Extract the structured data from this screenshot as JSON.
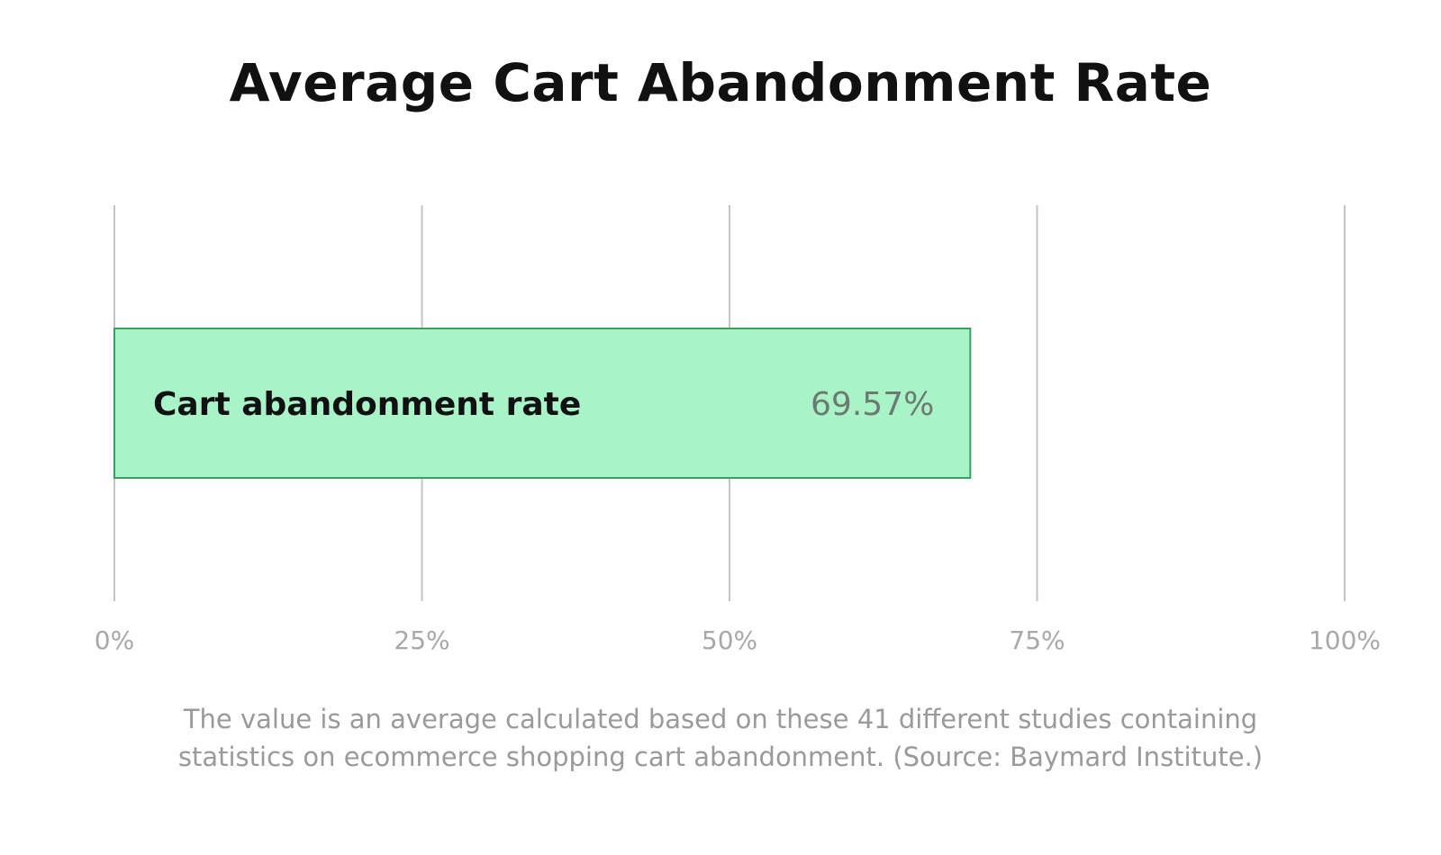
{
  "chart_data": {
    "type": "bar",
    "orientation": "horizontal",
    "title": "Average Cart Abandonment Rate",
    "categories": [
      "Cart abandonment rate"
    ],
    "values": [
      69.57
    ],
    "value_labels": [
      "69.57%"
    ],
    "xlim": [
      0,
      100
    ],
    "x_ticks": [
      0,
      25,
      50,
      75,
      100
    ],
    "x_tick_labels": [
      "0%",
      "25%",
      "50%",
      "75%",
      "100%"
    ],
    "grid": true,
    "legend": "none",
    "colors": {
      "bar_fill": "#a8f4c8",
      "bar_stroke": "#3aa060"
    },
    "note_lines": [
      "The value is an average calculated based on these 41 different studies containing",
      "statistics on ecommerce shopping cart abandonment. (Source: Baymard Institute.)"
    ]
  }
}
